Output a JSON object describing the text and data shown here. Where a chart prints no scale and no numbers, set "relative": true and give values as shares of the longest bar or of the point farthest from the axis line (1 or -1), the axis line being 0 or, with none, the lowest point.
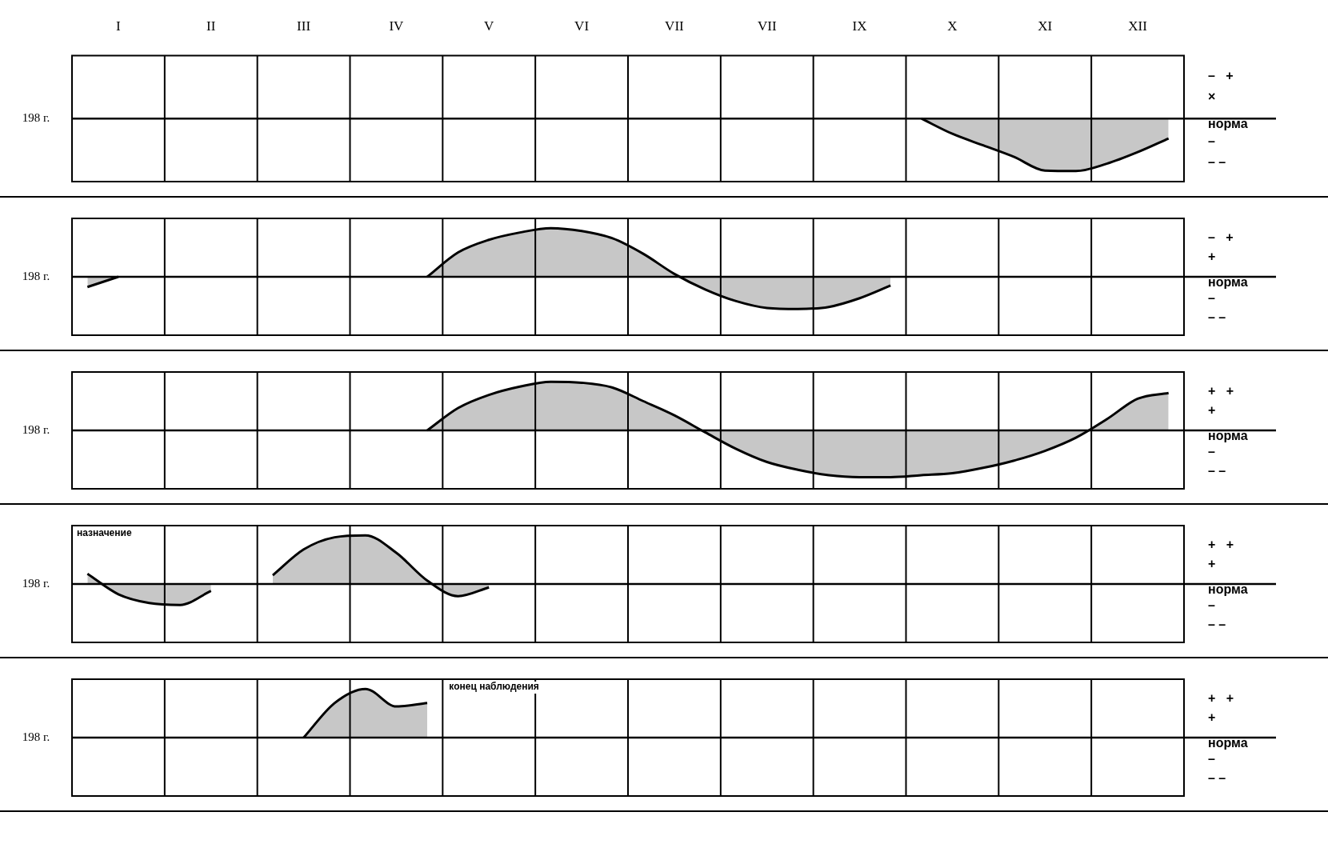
{
  "chart_data": [
    {
      "type": "area",
      "relative": true,
      "ylabel": "198 г.",
      "categories": [
        null,
        "I",
        null,
        null,
        "II",
        null,
        null,
        "III",
        null,
        null,
        "IV",
        null,
        null,
        "V",
        null,
        null,
        "VI",
        null,
        null,
        "VII",
        null,
        null,
        "VII",
        null,
        null,
        "IX",
        null,
        null,
        "X",
        null,
        null,
        "XI",
        null,
        null,
        "XII",
        null
      ],
      "series": [
        {
          "color": "#000000",
          "values": [
            null,
            null,
            null,
            null,
            null,
            null,
            null,
            null,
            null,
            null,
            null,
            null,
            null,
            null,
            null,
            null,
            null,
            null,
            null,
            null,
            null,
            null,
            null,
            null,
            null,
            null,
            null,
            0,
            -0.29,
            -0.51,
            -0.73,
            -0.99,
            -1,
            -0.86,
            -0.64,
            -0.38
          ]
        }
      ],
      "grid": "x",
      "legend": false,
      "annotations": [
        "–   +",
        "×",
        "норма",
        "–",
        "– –"
      ]
    },
    {
      "type": "area",
      "relative": true,
      "ylabel": "198 г.",
      "categories": [
        null,
        null,
        null,
        null,
        null,
        null,
        null,
        null,
        null,
        null,
        null,
        null,
        null,
        null,
        null,
        null,
        null,
        null,
        null,
        null,
        null,
        null,
        null,
        null,
        null,
        null,
        null,
        null,
        null,
        null,
        null,
        null,
        null,
        null,
        null,
        null
      ],
      "series": [
        {
          "color": "#000000",
          "values": [
            -0.21,
            0,
            null,
            null,
            null,
            null,
            null,
            null,
            null,
            null,
            null,
            0,
            0.5,
            0.76,
            0.91,
            1,
            0.94,
            0.79,
            0.47,
            0.06,
            -0.26,
            -0.5,
            -0.64,
            -0.66,
            -0.62,
            -0.44,
            -0.18,
            null,
            null,
            null,
            null,
            null,
            null,
            null,
            null,
            null
          ]
        }
      ],
      "grid": "x",
      "legend": false,
      "annotations": [
        "–   +",
        "+",
        "норма",
        "–",
        "– –"
      ]
    },
    {
      "type": "area",
      "relative": true,
      "ylabel": "198 г.",
      "categories": [
        null,
        null,
        null,
        null,
        null,
        null,
        null,
        null,
        null,
        null,
        null,
        null,
        null,
        null,
        null,
        null,
        null,
        null,
        null,
        null,
        null,
        null,
        null,
        null,
        null,
        null,
        null,
        null,
        null,
        null,
        null,
        null,
        null,
        null,
        null,
        null
      ],
      "series": [
        {
          "color": "#000000",
          "values": [
            null,
            null,
            null,
            null,
            null,
            null,
            null,
            null,
            null,
            null,
            null,
            0,
            0.46,
            0.73,
            0.9,
            1,
            0.98,
            0.88,
            0.6,
            0.31,
            -0.04,
            -0.38,
            -0.65,
            -0.81,
            -0.92,
            -0.96,
            -0.96,
            -0.92,
            -0.88,
            -0.77,
            -0.62,
            -0.42,
            -0.15,
            0.23,
            0.65,
            0.77
          ]
        }
      ],
      "grid": "x",
      "legend": false,
      "annotations": [
        "+   +",
        "+",
        "норма",
        "–",
        "– –"
      ]
    },
    {
      "type": "area",
      "relative": true,
      "ylabel": "198 г.",
      "categories": [
        null,
        null,
        null,
        null,
        null,
        null,
        null,
        null,
        null,
        null,
        null,
        null,
        null,
        null,
        null,
        null,
        null,
        null,
        null,
        null,
        null,
        null,
        null,
        null,
        null,
        null,
        null,
        null,
        null,
        null,
        null,
        null,
        null,
        null,
        null,
        null
      ],
      "series": [
        {
          "color": "#000000",
          "values": [
            0.21,
            -0.21,
            -0.39,
            -0.43,
            -0.14,
            null,
            0.18,
            0.71,
            0.96,
            1,
            0.64,
            0.07,
            -0.25,
            -0.07,
            null,
            null,
            null,
            null,
            null,
            null,
            null,
            null,
            null,
            null,
            null,
            null,
            null,
            null,
            null,
            null,
            null,
            null,
            null,
            null,
            null,
            null
          ]
        }
      ],
      "grid": "x",
      "legend": false,
      "annotations": [
        "+   +",
        "+",
        "норма",
        "–",
        "– –",
        "назначение"
      ]
    },
    {
      "type": "area",
      "relative": true,
      "ylabel": "198 г.",
      "categories": [
        null,
        null,
        null,
        null,
        null,
        null,
        null,
        null,
        null,
        null,
        null,
        null,
        null,
        null,
        null,
        null,
        null,
        null,
        null,
        null,
        null,
        null,
        null,
        null,
        null,
        null,
        null,
        null,
        null,
        null,
        null,
        null,
        null,
        null,
        null,
        null
      ],
      "series": [
        {
          "color": "#000000",
          "values": [
            null,
            null,
            null,
            null,
            null,
            null,
            null,
            0,
            0.71,
            1,
            0.64,
            0.71,
            null,
            null,
            null,
            null,
            null,
            null,
            null,
            null,
            null,
            null,
            null,
            null,
            null,
            null,
            null,
            null,
            null,
            null,
            null,
            null,
            null,
            null,
            null,
            null
          ]
        }
      ],
      "grid": "x",
      "legend": false,
      "annotations": [
        "+   +",
        "+",
        "норма",
        "–",
        "– –",
        "конец наблюдения"
      ]
    }
  ]
}
